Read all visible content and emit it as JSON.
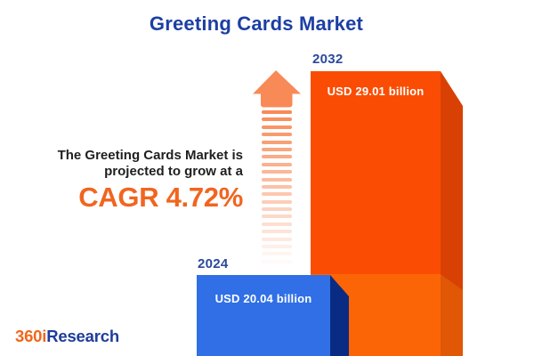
{
  "title": "Greeting Cards Market",
  "narrative": {
    "line1": "The Greeting Cards Market is",
    "line2": "projected to grow at a",
    "cagr": "CAGR 4.72%"
  },
  "chart_data": {
    "type": "bar",
    "title": "Greeting Cards Market",
    "categories": [
      "2024",
      "2032"
    ],
    "values": [
      20.04,
      29.01
    ],
    "unit": "USD billion",
    "value_labels": [
      "USD 20.04 billion",
      "USD 29.01 billion"
    ],
    "cagr_percent": 4.72,
    "series_colors": [
      "#306fe6",
      "#fa4d03"
    ],
    "orientation": "vertical",
    "legend": false,
    "annotations": [
      "growth arrow between text and 2032 bar"
    ]
  },
  "logo": {
    "part1": "360i",
    "part2": "Research"
  },
  "colors": {
    "title_navy": "#1c3fa3",
    "year_label_navy": "#2b499c",
    "text_dark": "#1f1f1f",
    "accent_orange": "#f1651f",
    "arrow_salmon": "#f88a57",
    "bar_2024_front": "#306fe6",
    "bar_2024_side": "#0a2b84",
    "bar_2032_front": "#fa4d03",
    "bar_2032_front_base": "#fb6505",
    "bar_2032_side": "#d94104",
    "bar_2032_side_base": "#e05705",
    "background": "#ffffff"
  }
}
